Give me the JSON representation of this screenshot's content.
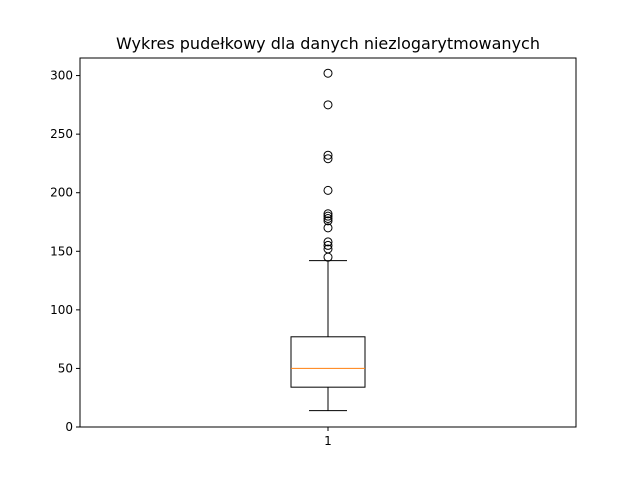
{
  "chart_data": {
    "type": "box",
    "title": "Wykres pudełkowy dla danych niezlogarytmowanych",
    "xlabel": "",
    "ylabel": "",
    "categories": [
      "1"
    ],
    "ylim": [
      0,
      315
    ],
    "yticks": [
      0,
      50,
      100,
      150,
      200,
      250,
      300
    ],
    "grid": false,
    "boxes": [
      {
        "label": "1",
        "whisker_low": 14,
        "q1": 34,
        "median": 50,
        "q3": 77,
        "whisker_high": 142,
        "outliers": [
          145,
          152,
          155,
          158,
          170,
          176,
          178,
          180,
          182,
          202,
          229,
          232,
          275,
          302
        ]
      }
    ],
    "colors": {
      "box": "#000000",
      "median": "#ff7f0e",
      "whisker": "#000000",
      "outlier": "#000000"
    }
  }
}
